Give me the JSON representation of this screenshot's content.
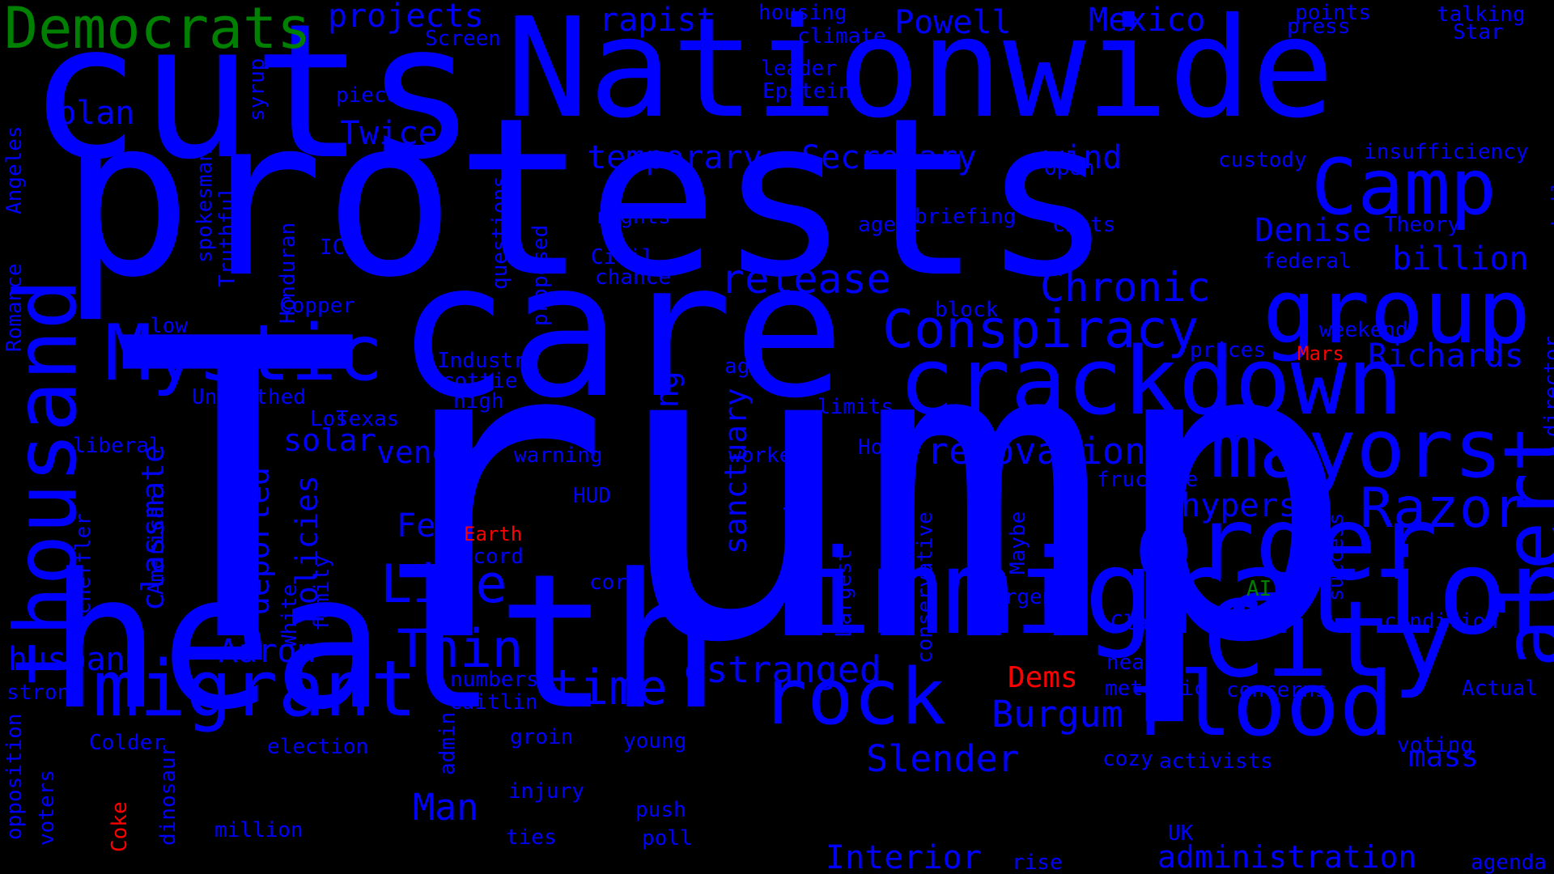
{
  "colors": {
    "background": "#000000",
    "blue": "#0000ff",
    "green": "#008000",
    "red": "#ff0000"
  },
  "words": [
    {
      "text": "Trump",
      "color": "blue"
    },
    {
      "text": "protests",
      "color": "blue"
    },
    {
      "text": "health",
      "color": "blue"
    },
    {
      "text": "care",
      "color": "blue"
    },
    {
      "text": "cuts",
      "color": "blue"
    },
    {
      "text": "Nationwide",
      "color": "blue"
    },
    {
      "text": "immigration",
      "color": "blue"
    },
    {
      "text": "crackdown",
      "color": "blue"
    },
    {
      "text": "order",
      "color": "blue"
    },
    {
      "text": "City",
      "color": "blue"
    },
    {
      "text": "mayors",
      "color": "blue"
    },
    {
      "text": "flood",
      "color": "blue"
    },
    {
      "text": "rock",
      "color": "blue"
    },
    {
      "text": "thousand",
      "color": "blue"
    },
    {
      "text": "migrant",
      "color": "blue"
    },
    {
      "text": "alert",
      "color": "blue"
    },
    {
      "text": "group",
      "color": "blue"
    },
    {
      "text": "Camp",
      "color": "blue"
    },
    {
      "text": "Mystic",
      "color": "blue"
    },
    {
      "text": "Razor",
      "color": "blue"
    },
    {
      "text": "Conspiracy",
      "color": "blue"
    },
    {
      "text": "Line",
      "color": "blue"
    },
    {
      "text": "Thin",
      "color": "blue"
    },
    {
      "text": "time",
      "color": "blue"
    },
    {
      "text": "Democrats",
      "color": "green"
    },
    {
      "text": "Chronic",
      "color": "blue"
    },
    {
      "text": "release",
      "color": "blue"
    },
    {
      "text": "estranged",
      "color": "blue"
    },
    {
      "text": "Burgum",
      "color": "blue"
    },
    {
      "text": "renovation",
      "color": "blue"
    },
    {
      "text": "Slender",
      "color": "blue"
    },
    {
      "text": "Man",
      "color": "blue"
    },
    {
      "text": "Interior",
      "color": "blue"
    },
    {
      "text": "administration",
      "color": "blue"
    },
    {
      "text": "Phypers",
      "color": "blue"
    },
    {
      "text": "Richards",
      "color": "blue"
    },
    {
      "text": "billion",
      "color": "blue"
    },
    {
      "text": "Denise",
      "color": "blue"
    },
    {
      "text": "Aaron",
      "color": "blue"
    },
    {
      "text": "husband",
      "color": "blue"
    },
    {
      "text": "Powell",
      "color": "blue"
    },
    {
      "text": "Mexico",
      "color": "blue"
    },
    {
      "text": "projects",
      "color": "blue"
    },
    {
      "text": "rapist",
      "color": "blue"
    },
    {
      "text": "temporary",
      "color": "blue"
    },
    {
      "text": "Secretary",
      "color": "blue"
    },
    {
      "text": "Twice",
      "color": "blue"
    },
    {
      "text": "plan",
      "color": "blue"
    },
    {
      "text": "wind",
      "color": "blue"
    },
    {
      "text": "solar",
      "color": "blue"
    },
    {
      "text": "venous",
      "color": "blue"
    },
    {
      "text": "Fed",
      "color": "blue"
    },
    {
      "text": "mass",
      "color": "blue"
    },
    {
      "text": "Dems",
      "color": "red"
    },
    {
      "text": "restraining",
      "color": "blue"
    },
    {
      "text": "sanctuary",
      "color": "blue"
    },
    {
      "text": "deported",
      "color": "blue"
    },
    {
      "text": "policies",
      "color": "blue"
    },
    {
      "text": "classmate",
      "color": "blue"
    },
    {
      "text": "insufficiency",
      "color": "blue"
    },
    {
      "text": "custody",
      "color": "blue"
    },
    {
      "text": "Open",
      "color": "blue"
    },
    {
      "text": "Theory",
      "color": "blue"
    },
    {
      "text": "jails",
      "color": "blue"
    },
    {
      "text": "federal",
      "color": "blue"
    },
    {
      "text": "weekend",
      "color": "blue"
    },
    {
      "text": "prices",
      "color": "blue"
    },
    {
      "text": "Mars",
      "color": "red"
    },
    {
      "text": "director",
      "color": "blue"
    },
    {
      "text": "fructose",
      "color": "blue"
    },
    {
      "text": "House",
      "color": "blue"
    },
    {
      "text": "workers",
      "color": "blue"
    },
    {
      "text": "limits",
      "color": "blue"
    },
    {
      "text": "age",
      "color": "blue"
    },
    {
      "text": "block",
      "color": "blue"
    },
    {
      "text": "agent",
      "color": "blue"
    },
    {
      "text": "chats",
      "color": "blue"
    },
    {
      "text": "briefing",
      "color": "blue"
    },
    {
      "text": "rights",
      "color": "blue"
    },
    {
      "text": "Civil",
      "color": "blue"
    },
    {
      "text": "chance",
      "color": "blue"
    },
    {
      "text": "Industry",
      "color": "blue"
    },
    {
      "text": "Scottie",
      "color": "blue"
    },
    {
      "text": "high",
      "color": "blue"
    },
    {
      "text": "Los",
      "color": "blue"
    },
    {
      "text": "Texas",
      "color": "blue"
    },
    {
      "text": "Unearthed",
      "color": "blue"
    },
    {
      "text": "warning",
      "color": "blue"
    },
    {
      "text": "liberal",
      "color": "blue"
    },
    {
      "text": "HUD",
      "color": "blue"
    },
    {
      "text": "Earth",
      "color": "red"
    },
    {
      "text": "record",
      "color": "blue"
    },
    {
      "text": "corn",
      "color": "blue"
    },
    {
      "text": "urgent",
      "color": "blue"
    },
    {
      "text": "AI",
      "color": "green"
    },
    {
      "text": "Clark",
      "color": "blue"
    },
    {
      "text": "nearly",
      "color": "blue"
    },
    {
      "text": "meteoric",
      "color": "blue"
    },
    {
      "text": "concerns",
      "color": "blue"
    },
    {
      "text": "condition",
      "color": "blue"
    },
    {
      "text": "Actual",
      "color": "blue"
    },
    {
      "text": "voting",
      "color": "blue"
    },
    {
      "text": "activists",
      "color": "blue"
    },
    {
      "text": "cozy",
      "color": "blue"
    },
    {
      "text": "UK",
      "color": "blue"
    },
    {
      "text": "rise",
      "color": "blue"
    },
    {
      "text": "agenda",
      "color": "blue"
    },
    {
      "text": "poll",
      "color": "blue"
    },
    {
      "text": "push",
      "color": "blue"
    },
    {
      "text": "ties",
      "color": "blue"
    },
    {
      "text": "injury",
      "color": "blue"
    },
    {
      "text": "groin",
      "color": "blue"
    },
    {
      "text": "young",
      "color": "blue"
    },
    {
      "text": "numbers",
      "color": "blue"
    },
    {
      "text": "Caitlin",
      "color": "blue"
    },
    {
      "text": "election",
      "color": "blue"
    },
    {
      "text": "Colder",
      "color": "blue"
    },
    {
      "text": "million",
      "color": "blue"
    },
    {
      "text": "strong",
      "color": "blue"
    },
    {
      "text": "housing",
      "color": "blue"
    },
    {
      "text": "climate",
      "color": "blue"
    },
    {
      "text": "Screen",
      "color": "blue"
    },
    {
      "text": "leader",
      "color": "blue"
    },
    {
      "text": "Epstein",
      "color": "blue"
    },
    {
      "text": "piece",
      "color": "blue"
    },
    {
      "text": "points",
      "color": "blue"
    },
    {
      "text": "press",
      "color": "blue"
    },
    {
      "text": "talking",
      "color": "blue"
    },
    {
      "text": "Star",
      "color": "blue"
    },
    {
      "text": "ICE",
      "color": "blue"
    },
    {
      "text": "Copper",
      "color": "blue"
    },
    {
      "text": "low",
      "color": "blue"
    },
    {
      "text": "success",
      "color": "blue"
    },
    {
      "text": "Angeles",
      "color": "blue"
    },
    {
      "text": "Romance",
      "color": "blue"
    },
    {
      "text": "syrup",
      "color": "blue"
    },
    {
      "text": "Truthful",
      "color": "blue"
    },
    {
      "text": "spokesman",
      "color": "blue"
    },
    {
      "text": "Honduran",
      "color": "blue"
    },
    {
      "text": "questions",
      "color": "blue"
    },
    {
      "text": "proposed",
      "color": "blue"
    },
    {
      "text": "American",
      "color": "blue"
    },
    {
      "text": "Scheffler",
      "color": "blue"
    },
    {
      "text": "family",
      "color": "blue"
    },
    {
      "text": "White",
      "color": "blue"
    },
    {
      "text": "government",
      "color": "blue"
    },
    {
      "text": "Largest",
      "color": "blue"
    },
    {
      "text": "conservative",
      "color": "blue"
    },
    {
      "text": "Maybe",
      "color": "blue"
    },
    {
      "text": "admin",
      "color": "blue"
    },
    {
      "text": "dinosaur",
      "color": "blue"
    },
    {
      "text": "Coke",
      "color": "red"
    },
    {
      "text": "voters",
      "color": "blue"
    },
    {
      "text": "opposition",
      "color": "blue"
    }
  ]
}
